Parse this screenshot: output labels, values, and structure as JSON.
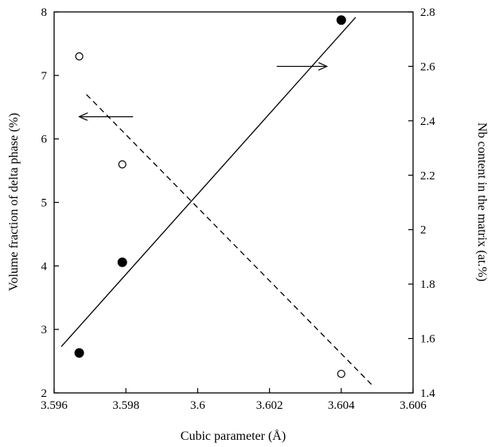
{
  "chart_data": {
    "type": "scatter",
    "xlabel": "Cubic parameter (Å)",
    "ylabel_left": "Volume fraction of delta phase (%)",
    "ylabel_right": "Nb content in the matrix (at.%)",
    "xlim": [
      3.596,
      3.606
    ],
    "ylim_left": [
      2,
      8
    ],
    "ylim_right": [
      1.4,
      2.8
    ],
    "x_ticks": [
      {
        "value": 3.596,
        "label": "3.596"
      },
      {
        "value": 3.598,
        "label": "3.598"
      },
      {
        "value": 3.6,
        "label": "3.6"
      },
      {
        "value": 3.602,
        "label": "3.602"
      },
      {
        "value": 3.604,
        "label": "3.604"
      },
      {
        "value": 3.606,
        "label": "3.606"
      }
    ],
    "y_left_ticks": [
      {
        "value": 2,
        "label": "2"
      },
      {
        "value": 3,
        "label": "3"
      },
      {
        "value": 4,
        "label": "4"
      },
      {
        "value": 5,
        "label": "5"
      },
      {
        "value": 6,
        "label": "6"
      },
      {
        "value": 7,
        "label": "7"
      },
      {
        "value": 8,
        "label": "8"
      }
    ],
    "y_right_ticks": [
      {
        "value": 1.4,
        "label": "1.4"
      },
      {
        "value": 1.6,
        "label": "1.6"
      },
      {
        "value": 1.8,
        "label": "1.8"
      },
      {
        "value": 2.0,
        "label": "2"
      },
      {
        "value": 2.2,
        "label": "2.2"
      },
      {
        "value": 2.4,
        "label": "2.4"
      },
      {
        "value": 2.6,
        "label": "2.6"
      },
      {
        "value": 2.8,
        "label": "2.8"
      }
    ],
    "series": [
      {
        "axis": "left",
        "marker": "open-circle",
        "points": [
          {
            "x": 3.5967,
            "y": 7.3
          },
          {
            "x": 3.5979,
            "y": 5.6
          },
          {
            "x": 3.604,
            "y": 2.3
          }
        ]
      },
      {
        "axis": "right",
        "marker": "filled-circle",
        "points": [
          {
            "x": 3.5967,
            "y": 1.547
          },
          {
            "x": 3.5979,
            "y": 1.88
          },
          {
            "x": 3.604,
            "y": 2.77
          }
        ]
      }
    ],
    "fit_lines": [
      {
        "axis": "left",
        "style": "dashed",
        "x": [
          3.5969,
          3.6049
        ],
        "y": [
          6.7,
          2.1
        ]
      },
      {
        "axis": "right",
        "style": "solid",
        "x": [
          3.5962,
          3.6044
        ],
        "y": [
          1.57,
          2.78
        ]
      }
    ],
    "arrows": [
      {
        "axis": "left",
        "direction": "left",
        "x_from": 3.5982,
        "x_to": 3.5967,
        "y": 6.35
      },
      {
        "axis": "right",
        "direction": "right",
        "x_from": 3.6022,
        "x_to": 3.6036,
        "y": 2.6
      }
    ],
    "colors": {
      "ink": "#000000",
      "background": "#ffffff"
    },
    "grid": false
  }
}
